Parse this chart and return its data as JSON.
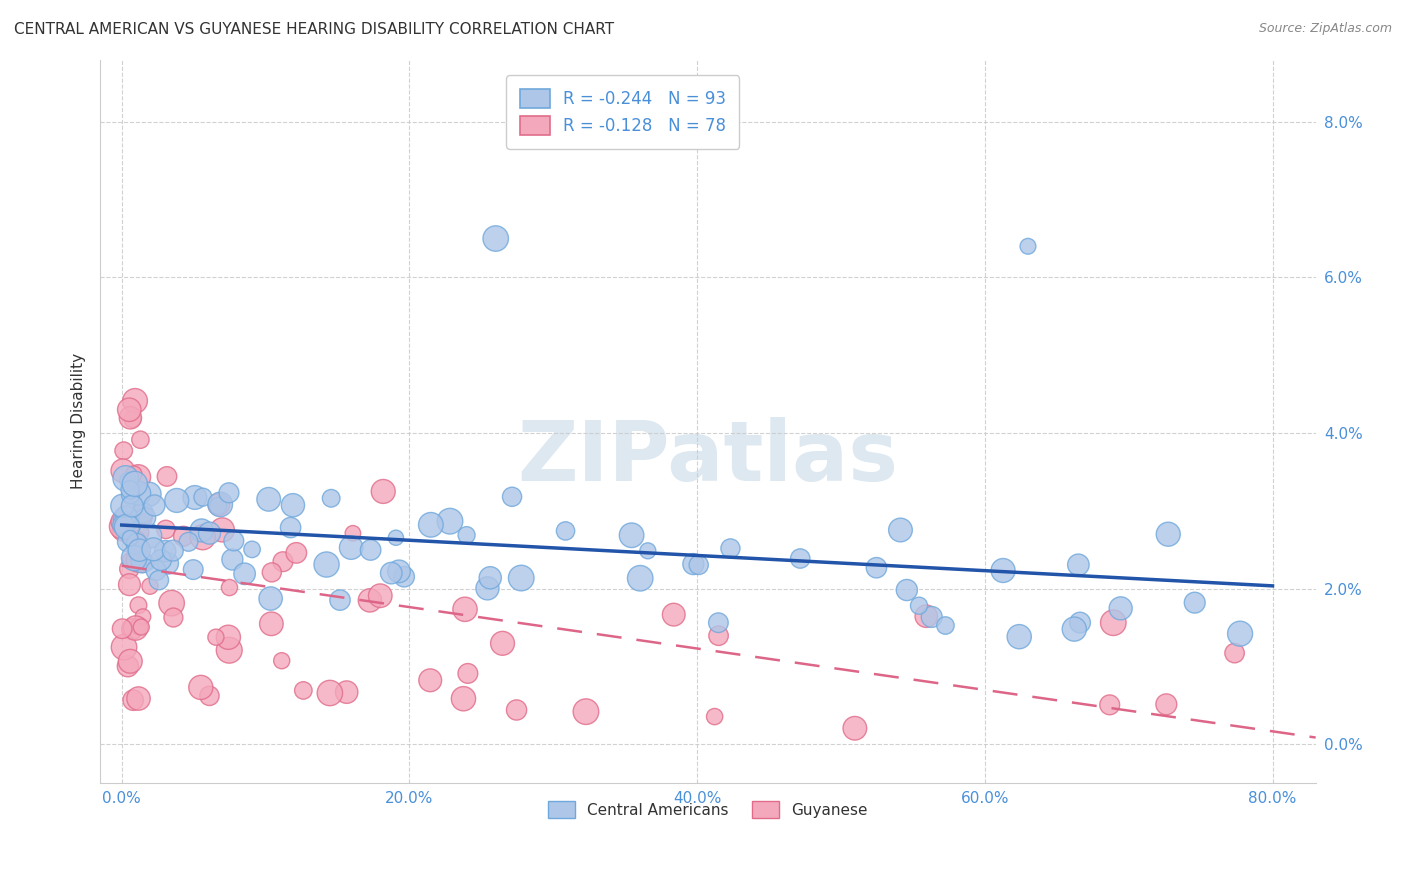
{
  "title": "CENTRAL AMERICAN VS GUYANESE HEARING DISABILITY CORRELATION CHART",
  "source": "Source: ZipAtlas.com",
  "xlabel_ticks": [
    "0.0%",
    "20.0%",
    "40.0%",
    "60.0%",
    "80.0%"
  ],
  "ylabel_ticks": [
    "0.0%",
    "2.0%",
    "4.0%",
    "6.0%",
    "8.0%"
  ],
  "xlabel_vals": [
    0,
    20,
    40,
    60,
    80
  ],
  "ylabel_vals": [
    0,
    2,
    4,
    6,
    8
  ],
  "xlim": [
    -1.5,
    83
  ],
  "ylim": [
    -0.5,
    8.8
  ],
  "ylabel": "Hearing Disability",
  "legend_labels": [
    "Central Americans",
    "Guyanese"
  ],
  "ca_R": "-0.244",
  "ca_N": "93",
  "gu_R": "-0.128",
  "gu_N": "78",
  "ca_color": "#aec6e8",
  "gu_color": "#f4a8bc",
  "ca_edge_color": "#6fa8dc",
  "gu_edge_color": "#e06c8a",
  "ca_line_color": "#2255aa",
  "gu_line_color": "#dd6688",
  "background_color": "#ffffff",
  "grid_color": "#cccccc",
  "watermark_color": "#dde8f0",
  "title_fontsize": 11,
  "source_fontsize": 9,
  "tick_color": "#4a90d9",
  "legend_text_color": "#333333",
  "legend_rn_color": "#4a90d9"
}
